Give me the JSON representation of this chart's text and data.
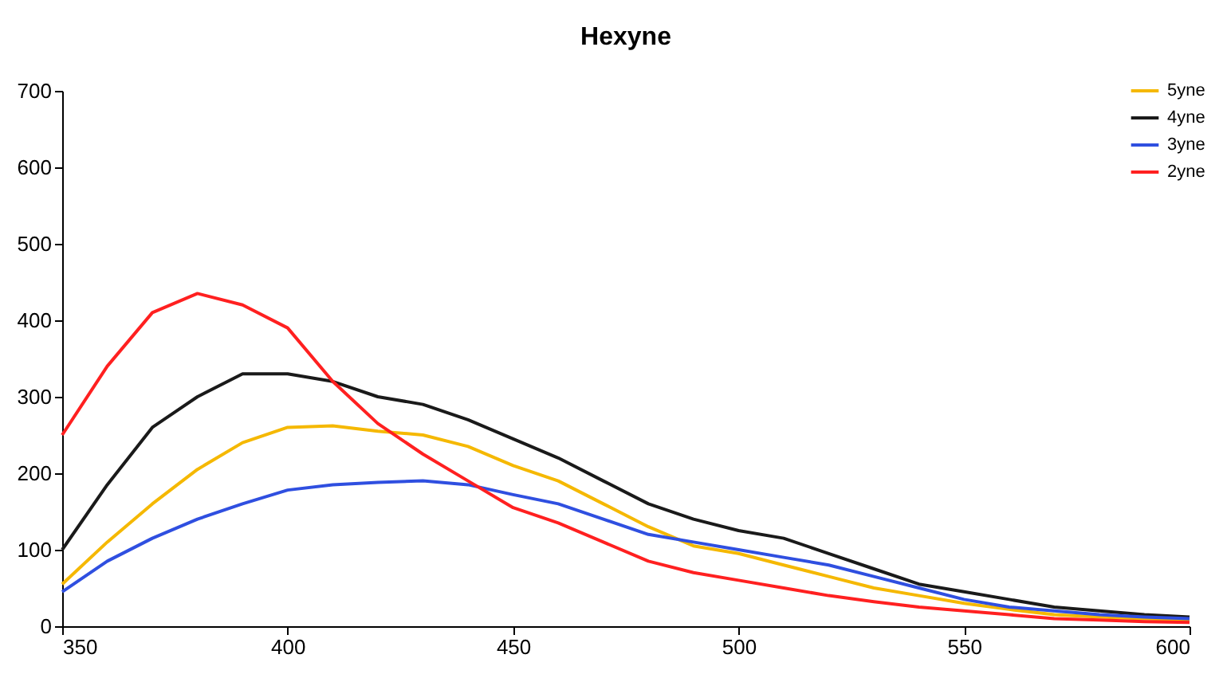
{
  "chart_data": {
    "type": "line",
    "title": "Hexyne",
    "xlim": [
      350,
      600
    ],
    "xticks": [
      350,
      400,
      450,
      500,
      550,
      600
    ],
    "ylim": [
      0,
      700
    ],
    "yticks": [
      0,
      100,
      200,
      300,
      400,
      500,
      600,
      700
    ],
    "grid": false,
    "legend": "top right",
    "marker": "none",
    "line_style": "solid",
    "x": [
      350,
      360,
      370,
      380,
      390,
      400,
      410,
      420,
      430,
      440,
      450,
      460,
      470,
      480,
      490,
      500,
      510,
      520,
      530,
      540,
      550,
      560,
      570,
      580,
      590,
      600
    ],
    "series": [
      {
        "name": "5yne",
        "color": "#f5b800",
        "values": [
          55,
          110,
          160,
          205,
          240,
          260,
          262,
          255,
          250,
          235,
          210,
          190,
          160,
          130,
          105,
          95,
          80,
          65,
          50,
          40,
          30,
          22,
          15,
          12,
          10,
          8
        ]
      },
      {
        "name": "4yne",
        "color": "#1a1a1a",
        "values": [
          100,
          185,
          260,
          300,
          330,
          330,
          320,
          300,
          290,
          270,
          245,
          220,
          190,
          160,
          140,
          125,
          115,
          95,
          75,
          55,
          45,
          35,
          25,
          20,
          15,
          12
        ]
      },
      {
        "name": "3yne",
        "color": "#2f4fe0",
        "values": [
          45,
          85,
          115,
          140,
          160,
          178,
          185,
          188,
          190,
          185,
          172,
          160,
          140,
          120,
          110,
          100,
          90,
          80,
          65,
          50,
          35,
          25,
          20,
          15,
          12,
          10
        ]
      },
      {
        "name": "2yne",
        "color": "#ff2020",
        "values": [
          250,
          340,
          410,
          435,
          420,
          390,
          320,
          265,
          225,
          190,
          155,
          135,
          110,
          85,
          70,
          60,
          50,
          40,
          32,
          25,
          20,
          15,
          10,
          8,
          6,
          5
        ]
      }
    ]
  }
}
